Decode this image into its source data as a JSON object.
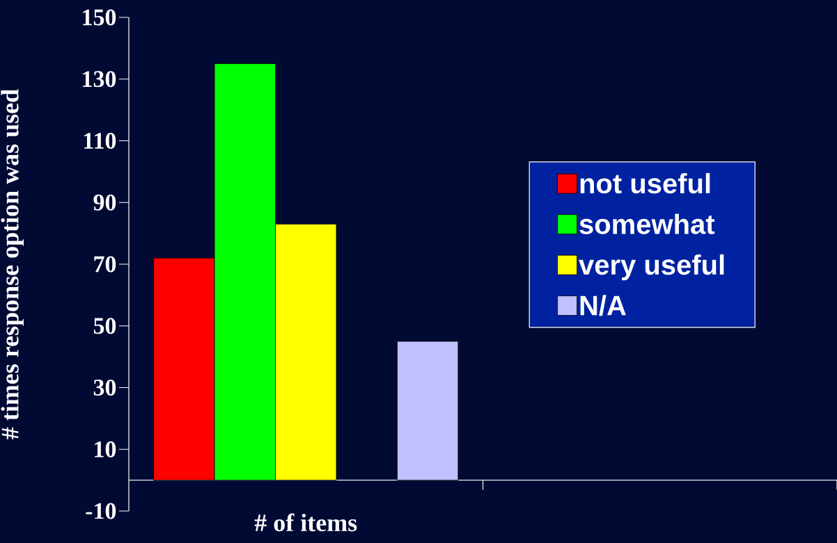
{
  "chart_data": {
    "type": "bar",
    "xlabel": "# of items",
    "ylabel": "# times response option was used",
    "categories": [
      null,
      null
    ],
    "series": [
      {
        "name": "not useful",
        "color": "#ff0000",
        "values": [
          72,
          null
        ]
      },
      {
        "name": "somewhat",
        "color": "#00ff00",
        "values": [
          135,
          null
        ]
      },
      {
        "name": "very useful",
        "color": "#ffff00",
        "values": [
          83,
          null
        ]
      },
      {
        "name": "N/A",
        "color": "#c0c0ff",
        "values": [
          45,
          null
        ]
      }
    ],
    "ylim": [
      -10,
      150
    ],
    "yticks": [
      -10,
      10,
      30,
      50,
      70,
      90,
      110,
      130,
      150
    ],
    "grid": false,
    "legend": "right"
  }
}
